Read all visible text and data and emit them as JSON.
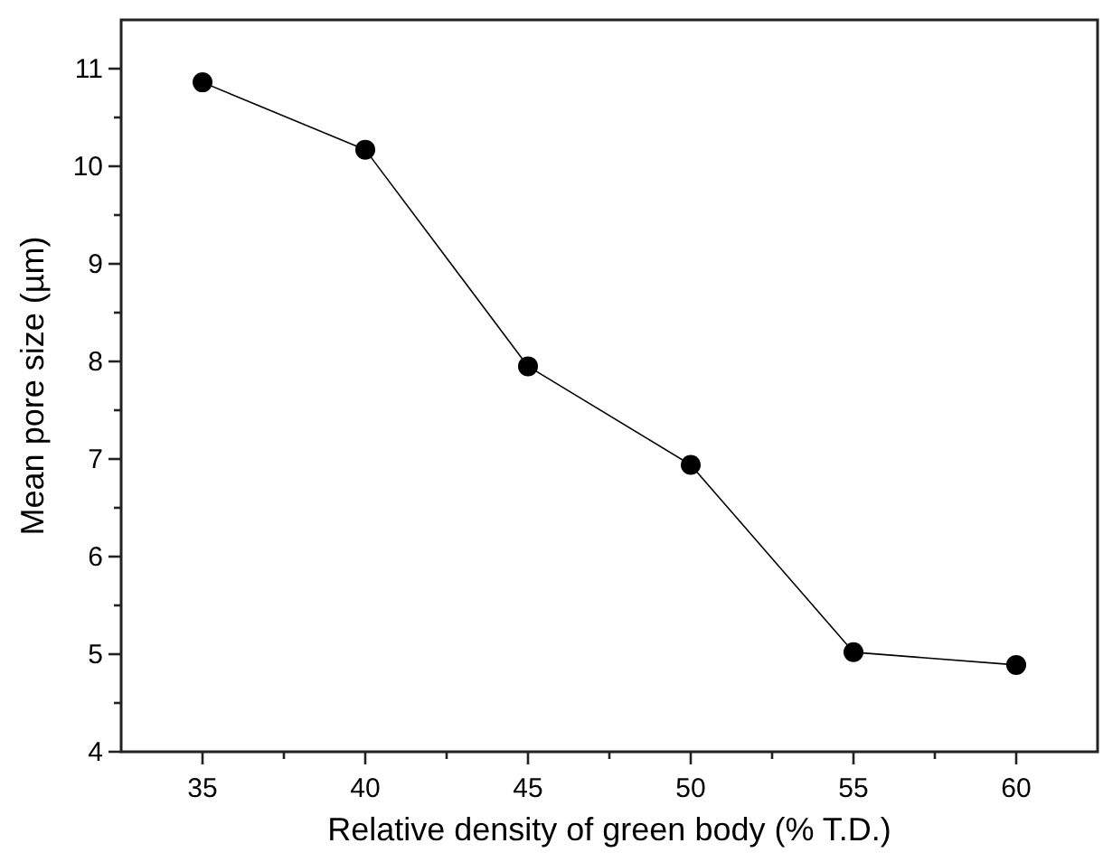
{
  "chart_data": {
    "type": "line",
    "xlabel": "Relative density of green body (% T.D.)",
    "ylabel": "Mean pore size (µm)",
    "x": [
      35,
      40,
      45,
      50,
      55,
      60
    ],
    "series": [
      {
        "color": "#000000",
        "values": [
          10.86,
          10.17,
          7.95,
          6.94,
          5.02,
          4.89
        ]
      }
    ],
    "xlim": [
      32.5,
      62.5
    ],
    "xticks": [
      35,
      {
        "value": 37.5,
        "label": null
      },
      40,
      {
        "value": 42.5,
        "label": null
      },
      45,
      {
        "value": 47.5,
        "label": null
      },
      50,
      {
        "value": 52.5,
        "label": null
      },
      55,
      {
        "value": 57.5,
        "label": null
      },
      60
    ],
    "ylim": [
      4,
      11.5
    ],
    "yticks": [
      4,
      {
        "value": 4.5,
        "label": null
      },
      5,
      {
        "value": 5.5,
        "label": null
      },
      6,
      {
        "value": 6.5,
        "label": null
      },
      7,
      {
        "value": 7.5,
        "label": null
      },
      8,
      {
        "value": 8.5,
        "label": null
      },
      9,
      {
        "value": 9.5,
        "label": null
      },
      10,
      {
        "value": 10.5,
        "label": null
      },
      11
    ],
    "marker": "circle",
    "line_style": "solid",
    "grid": false
  }
}
